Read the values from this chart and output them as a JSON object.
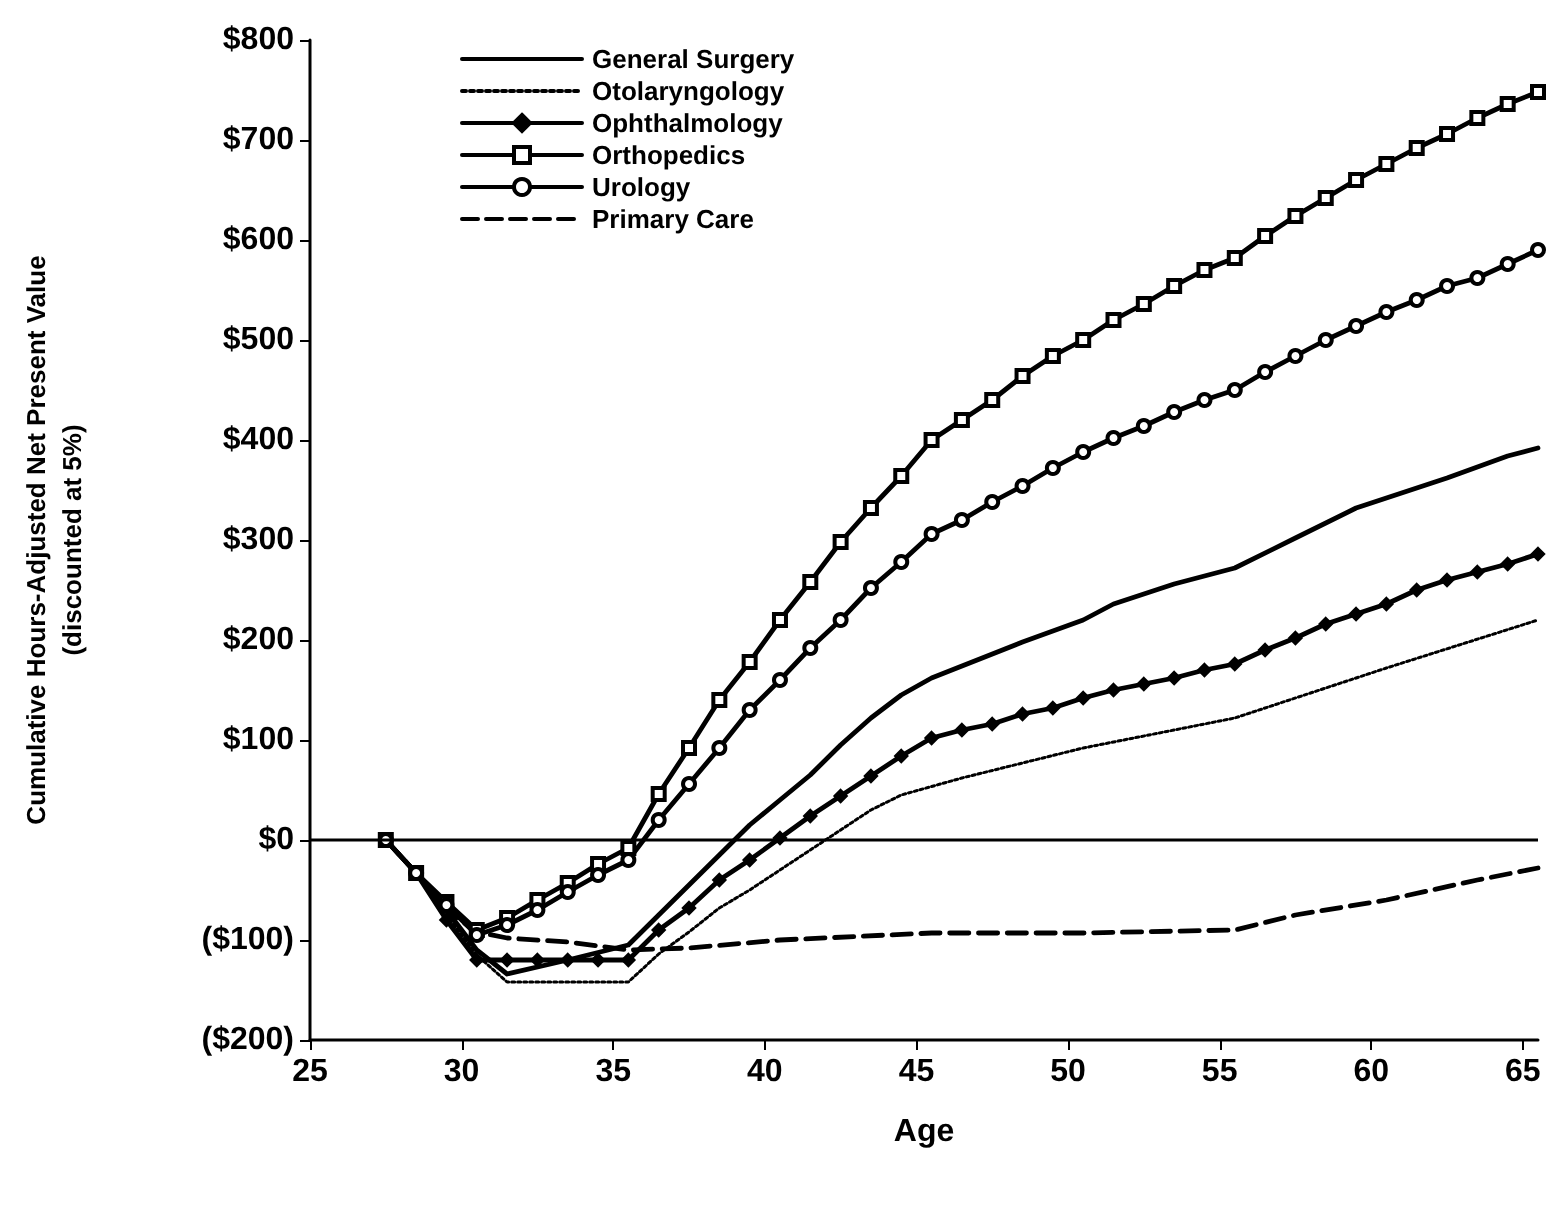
{
  "chart_data": {
    "type": "line",
    "xlabel": "Age",
    "ylabel": "Cumulative Hours-Adjusted Net Present Value\n(discounted at 5%)",
    "xlim": [
      25,
      65.5
    ],
    "xticks": [
      25,
      30,
      35,
      40,
      45,
      50,
      55,
      60,
      65
    ],
    "ylim": [
      -200,
      800
    ],
    "yticks": [
      {
        "value": -200,
        "label": "($200)"
      },
      {
        "value": -100,
        "label": "($100)"
      },
      {
        "value": 0,
        "label": "$0"
      },
      {
        "value": 100,
        "label": "$100"
      },
      {
        "value": 200,
        "label": "$200"
      },
      {
        "value": 300,
        "label": "$300"
      },
      {
        "value": 400,
        "label": "$400"
      },
      {
        "value": 500,
        "label": "$500"
      },
      {
        "value": 600,
        "label": "$600"
      },
      {
        "value": 700,
        "label": "$700"
      },
      {
        "value": 800,
        "label": "$800"
      }
    ],
    "grid": false,
    "legend": "top left",
    "ref_lines": [
      {
        "axis": "y",
        "value": 0,
        "color": "#000000",
        "line_style": "solid"
      }
    ],
    "series": [
      {
        "name": "General Surgery",
        "color": "#000000",
        "line_style": "solid",
        "marker": "none",
        "x": [
          27.5,
          28.5,
          29.5,
          30.5,
          31.5,
          33.5,
          35.5,
          36.5,
          37.5,
          38.5,
          39.5,
          40.5,
          41.5,
          42.5,
          43.5,
          44.5,
          45.5,
          48.5,
          50.5,
          51.5,
          53.5,
          55.5,
          57.5,
          59.5,
          62.5,
          64.5,
          65.5
        ],
        "values": [
          0,
          -33,
          -70,
          -110,
          -134,
          -120,
          -105,
          -75,
          -45,
          -15,
          15,
          40,
          65,
          95,
          122,
          145,
          162,
          198,
          220,
          236,
          256,
          272,
          302,
          332,
          362,
          384,
          392
        ]
      },
      {
        "name": "Otolaryngology",
        "color": "#000000",
        "line_style": "dotted",
        "marker": "none",
        "x": [
          27.5,
          28.5,
          29.5,
          30.5,
          31.5,
          33.5,
          35.5,
          36.5,
          37.5,
          38.5,
          39.5,
          40.5,
          41.5,
          42.5,
          43.5,
          44.5,
          46.5,
          50.5,
          55.5,
          60.5,
          65.5
        ],
        "values": [
          0,
          -33,
          -75,
          -115,
          -142,
          -142,
          -142,
          -114,
          -92,
          -68,
          -50,
          -30,
          -10,
          10,
          30,
          45,
          62,
          92,
          122,
          172,
          220
        ]
      },
      {
        "name": "Ophthalmology",
        "color": "#000000",
        "line_style": "solid",
        "marker": "diamond",
        "x": [
          27.5,
          28.5,
          29.5,
          30.5,
          31.5,
          32.5,
          33.5,
          34.5,
          35.5,
          36.5,
          37.5,
          38.5,
          39.5,
          40.5,
          41.5,
          42.5,
          43.5,
          44.5,
          45.5,
          46.5,
          47.5,
          48.5,
          49.5,
          50.5,
          51.5,
          52.5,
          53.5,
          54.5,
          55.5,
          56.5,
          57.5,
          58.5,
          59.5,
          60.5,
          61.5,
          62.5,
          63.5,
          64.5,
          65.5
        ],
        "values": [
          0,
          -33,
          -80,
          -120,
          -120,
          -120,
          -120,
          -120,
          -120,
          -90,
          -68,
          -40,
          -20,
          2,
          24,
          44,
          64,
          84,
          102,
          110,
          116,
          126,
          132,
          142,
          150,
          156,
          162,
          170,
          176,
          190,
          202,
          216,
          226,
          236,
          250,
          260,
          268,
          276,
          286
        ]
      },
      {
        "name": "Orthopedics",
        "color": "#000000",
        "line_style": "solid",
        "marker": "square",
        "x": [
          27.5,
          28.5,
          29.5,
          30.5,
          31.5,
          32.5,
          33.5,
          34.5,
          35.5,
          36.5,
          37.5,
          38.5,
          39.5,
          40.5,
          41.5,
          42.5,
          43.5,
          44.5,
          45.5,
          46.5,
          47.5,
          48.5,
          49.5,
          50.5,
          51.5,
          52.5,
          53.5,
          54.5,
          55.5,
          56.5,
          57.5,
          58.5,
          59.5,
          60.5,
          61.5,
          62.5,
          63.5,
          64.5,
          65.5
        ],
        "values": [
          0,
          -33,
          -62,
          -90,
          -78,
          -60,
          -43,
          -24,
          -8,
          46,
          92,
          140,
          178,
          220,
          258,
          298,
          332,
          364,
          400,
          420,
          440,
          464,
          484,
          500,
          520,
          536,
          554,
          570,
          582,
          604,
          624,
          642,
          660,
          676,
          692,
          706,
          722,
          736,
          748
        ]
      },
      {
        "name": "Urology",
        "color": "#000000",
        "line_style": "solid",
        "marker": "circle",
        "x": [
          27.5,
          28.5,
          29.5,
          30.5,
          31.5,
          32.5,
          33.5,
          34.5,
          35.5,
          36.5,
          37.5,
          38.5,
          39.5,
          40.5,
          41.5,
          42.5,
          43.5,
          44.5,
          45.5,
          46.5,
          47.5,
          48.5,
          49.5,
          50.5,
          51.5,
          52.5,
          53.5,
          54.5,
          55.5,
          56.5,
          57.5,
          58.5,
          59.5,
          60.5,
          61.5,
          62.5,
          63.5,
          64.5,
          65.5
        ],
        "values": [
          0,
          -33,
          -65,
          -95,
          -85,
          -70,
          -52,
          -35,
          -20,
          20,
          56,
          92,
          130,
          160,
          192,
          220,
          252,
          278,
          306,
          320,
          338,
          354,
          372,
          388,
          402,
          414,
          428,
          440,
          450,
          468,
          484,
          500,
          514,
          528,
          540,
          554,
          562,
          576,
          590
        ]
      },
      {
        "name": "Primary Care",
        "color": "#000000",
        "line_style": "dashed",
        "marker": "none",
        "x": [
          27.5,
          28.5,
          29.5,
          30.5,
          31.5,
          33.5,
          35.5,
          37.5,
          40.5,
          45.5,
          50.5,
          55.5,
          57.5,
          60.5,
          63.5,
          65.5
        ],
        "values": [
          0,
          -33,
          -70,
          -92,
          -98,
          -102,
          -110,
          -108,
          -100,
          -93,
          -93,
          -90,
          -75,
          -60,
          -40,
          -28
        ]
      }
    ]
  }
}
